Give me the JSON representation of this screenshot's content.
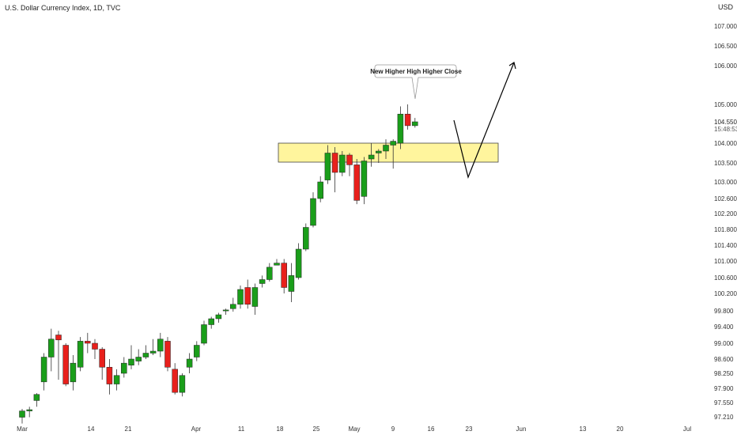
{
  "header": {
    "title": "U.S. Dollar Currency Index, 1D, TVC",
    "currency": "USD"
  },
  "annotation": {
    "callout": "New Higher High Higher Close"
  },
  "price_tag": {
    "price": "104.550",
    "countdown": "15:48:53"
  },
  "colors": {
    "up": "#1a9e1a",
    "down": "#e8201c",
    "zone_fill": "#fff59d",
    "zone_stroke": "#444444",
    "wick": "#333333"
  },
  "chart_data": {
    "type": "candlestick",
    "title": "U.S. Dollar Currency Index, 1D, TVC",
    "y_axis_ticks": [
      "107.000",
      "106.500",
      "106.000",
      "105.000",
      "104.550",
      "104.000",
      "103.500",
      "103.000",
      "102.600",
      "102.200",
      "101.800",
      "101.400",
      "101.000",
      "100.600",
      "100.200",
      "99.800",
      "99.400",
      "99.000",
      "98.600",
      "98.250",
      "97.900",
      "97.550",
      "97.210"
    ],
    "y_axis_scale": "log",
    "ylim": [
      97.21,
      107.3
    ],
    "x_axis_ticks": [
      "Mar",
      "14",
      "21",
      "Apr",
      "11",
      "18",
      "25",
      "May",
      "9",
      "16",
      "23",
      "Jun",
      "13",
      "20",
      "Jul"
    ],
    "bars": [
      {
        "date": "Mar 1",
        "o": 97.2,
        "h": 97.4,
        "l": 97.05,
        "c": 97.35
      },
      {
        "date": "Mar 2",
        "o": 97.35,
        "h": 97.45,
        "l": 97.2,
        "c": 97.38
      },
      {
        "date": "Mar 3",
        "o": 97.6,
        "h": 97.78,
        "l": 97.45,
        "c": 97.75
      },
      {
        "date": "Mar 4",
        "o": 98.05,
        "h": 98.75,
        "l": 97.85,
        "c": 98.65
      },
      {
        "date": "Mar 7",
        "o": 98.65,
        "h": 99.35,
        "l": 98.3,
        "c": 99.1
      },
      {
        "date": "Mar 8",
        "o": 99.2,
        "h": 99.3,
        "l": 98.1,
        "c": 99.08
      },
      {
        "date": "Mar 9",
        "o": 98.95,
        "h": 99.0,
        "l": 97.95,
        "c": 98.0
      },
      {
        "date": "Mar 10",
        "o": 98.05,
        "h": 98.7,
        "l": 97.85,
        "c": 98.5
      },
      {
        "date": "Mar 11",
        "o": 98.4,
        "h": 99.15,
        "l": 98.3,
        "c": 99.05
      },
      {
        "date": "Mar 14",
        "o": 99.05,
        "h": 99.25,
        "l": 98.75,
        "c": 99.0
      },
      {
        "date": "Mar 15",
        "o": 99.0,
        "h": 99.1,
        "l": 98.6,
        "c": 98.85
      },
      {
        "date": "Mar 16",
        "o": 98.85,
        "h": 98.9,
        "l": 98.1,
        "c": 98.4
      },
      {
        "date": "Mar 17",
        "o": 98.4,
        "h": 98.6,
        "l": 97.75,
        "c": 98.0
      },
      {
        "date": "Mar 18",
        "o": 98.0,
        "h": 98.35,
        "l": 97.85,
        "c": 98.2
      },
      {
        "date": "Mar 21",
        "o": 98.25,
        "h": 98.65,
        "l": 98.15,
        "c": 98.5
      },
      {
        "date": "Mar 22",
        "o": 98.45,
        "h": 98.95,
        "l": 98.35,
        "c": 98.6
      },
      {
        "date": "Mar 23",
        "o": 98.55,
        "h": 98.85,
        "l": 98.45,
        "c": 98.65
      },
      {
        "date": "Mar 24",
        "o": 98.65,
        "h": 98.95,
        "l": 98.6,
        "c": 98.75
      },
      {
        "date": "Mar 25",
        "o": 98.75,
        "h": 99.1,
        "l": 98.7,
        "c": 98.8
      },
      {
        "date": "Mar 28",
        "o": 98.8,
        "h": 99.25,
        "l": 98.65,
        "c": 99.1
      },
      {
        "date": "Mar 29",
        "o": 99.05,
        "h": 99.15,
        "l": 98.3,
        "c": 98.4
      },
      {
        "date": "Mar 30",
        "o": 98.35,
        "h": 98.5,
        "l": 97.75,
        "c": 97.8
      },
      {
        "date": "Mar 31",
        "o": 97.8,
        "h": 98.25,
        "l": 97.7,
        "c": 98.2
      },
      {
        "date": "Apr 1",
        "o": 98.4,
        "h": 98.75,
        "l": 98.25,
        "c": 98.6
      },
      {
        "date": "Apr 4",
        "o": 98.65,
        "h": 99.05,
        "l": 98.55,
        "c": 98.95
      },
      {
        "date": "Apr 5",
        "o": 99.0,
        "h": 99.55,
        "l": 98.95,
        "c": 99.45
      },
      {
        "date": "Apr 6",
        "o": 99.45,
        "h": 99.65,
        "l": 99.35,
        "c": 99.6
      },
      {
        "date": "Apr 7",
        "o": 99.6,
        "h": 99.75,
        "l": 99.5,
        "c": 99.7
      },
      {
        "date": "Apr 8",
        "o": 99.8,
        "h": 99.85,
        "l": 99.7,
        "c": 99.82
      },
      {
        "date": "Apr 11",
        "o": 99.85,
        "h": 100.1,
        "l": 99.78,
        "c": 99.95
      },
      {
        "date": "Apr 12",
        "o": 99.95,
        "h": 100.4,
        "l": 99.85,
        "c": 100.3
      },
      {
        "date": "Apr 13",
        "o": 100.35,
        "h": 100.55,
        "l": 99.85,
        "c": 99.95
      },
      {
        "date": "Apr 14",
        "o": 99.9,
        "h": 100.45,
        "l": 99.7,
        "c": 100.35
      },
      {
        "date": "Apr 18",
        "o": 100.45,
        "h": 100.65,
        "l": 100.35,
        "c": 100.55
      },
      {
        "date": "Apr 19",
        "o": 100.55,
        "h": 100.95,
        "l": 100.5,
        "c": 100.85
      },
      {
        "date": "Apr 20",
        "o": 100.9,
        "h": 101.05,
        "l": 100.9,
        "c": 100.95
      },
      {
        "date": "Apr 21",
        "o": 100.95,
        "h": 101.05,
        "l": 100.2,
        "c": 100.35
      },
      {
        "date": "Apr 22",
        "o": 100.25,
        "h": 100.95,
        "l": 100.0,
        "c": 100.65
      },
      {
        "date": "Apr 25",
        "o": 100.6,
        "h": 101.45,
        "l": 100.55,
        "c": 101.3
      },
      {
        "date": "Apr 26",
        "o": 101.3,
        "h": 101.95,
        "l": 101.25,
        "c": 101.85
      },
      {
        "date": "Apr 27",
        "o": 101.9,
        "h": 102.75,
        "l": 101.85,
        "c": 102.6
      },
      {
        "date": "Apr 28",
        "o": 102.6,
        "h": 103.15,
        "l": 102.5,
        "c": 103.0
      },
      {
        "date": "Apr 29",
        "o": 103.05,
        "h": 103.95,
        "l": 102.95,
        "c": 103.75
      },
      {
        "date": "May 2",
        "o": 103.75,
        "h": 103.9,
        "l": 102.75,
        "c": 103.25
      },
      {
        "date": "May 3",
        "o": 103.25,
        "h": 103.8,
        "l": 103.15,
        "c": 103.7
      },
      {
        "date": "May 4",
        "o": 103.7,
        "h": 103.75,
        "l": 103.15,
        "c": 103.45
      },
      {
        "date": "May 5",
        "o": 103.45,
        "h": 103.6,
        "l": 102.45,
        "c": 102.55
      },
      {
        "date": "May 6",
        "o": 102.65,
        "h": 103.65,
        "l": 102.45,
        "c": 103.55
      },
      {
        "date": "May 9",
        "o": 103.6,
        "h": 104.0,
        "l": 103.4,
        "c": 103.7
      },
      {
        "date": "May 10",
        "o": 103.75,
        "h": 103.85,
        "l": 103.5,
        "c": 103.8
      },
      {
        "date": "May 11",
        "o": 103.8,
        "h": 104.1,
        "l": 103.6,
        "c": 103.95
      },
      {
        "date": "May 12",
        "o": 103.95,
        "h": 104.1,
        "l": 103.35,
        "c": 104.05
      },
      {
        "date": "May 13",
        "o": 104.0,
        "h": 104.95,
        "l": 103.85,
        "c": 104.75
      },
      {
        "date": "May 16",
        "o": 104.75,
        "h": 105.0,
        "l": 104.35,
        "c": 104.45
      },
      {
        "date": "May 17",
        "o": 104.45,
        "h": 104.65,
        "l": 104.4,
        "c": 104.55
      }
    ]
  }
}
